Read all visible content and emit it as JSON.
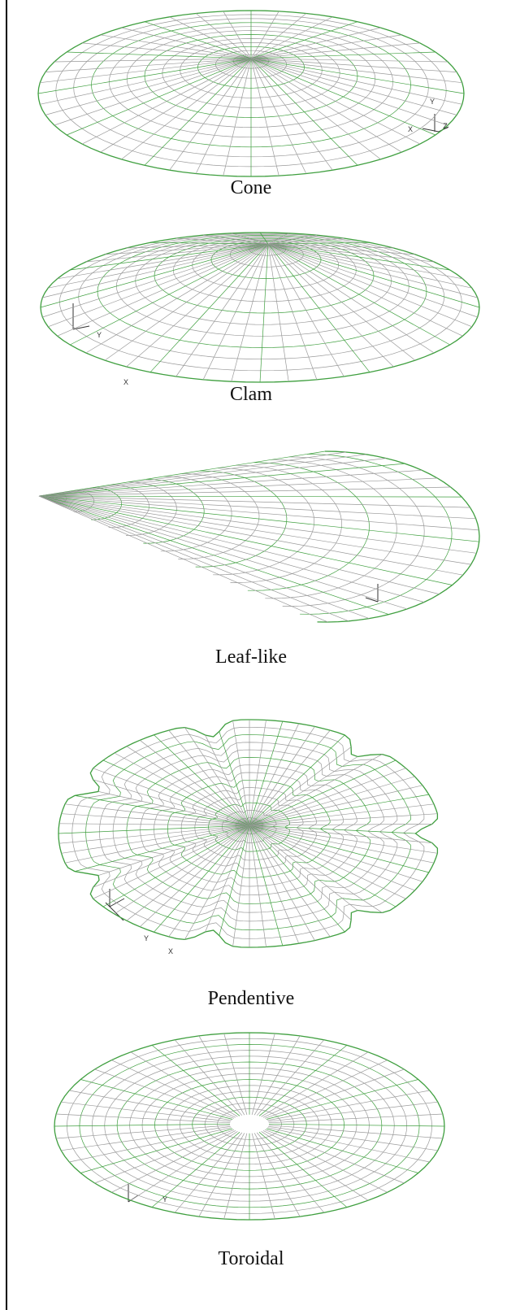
{
  "panels": [
    {
      "caption": "Cone",
      "axis_labels": [
        "Y",
        "X",
        "Z"
      ]
    },
    {
      "caption": "Clam",
      "axis_labels": [
        "Y",
        "X"
      ]
    },
    {
      "caption": "Leaf-like",
      "axis_labels": []
    },
    {
      "caption": "Pendentive",
      "axis_labels": [
        "Y",
        "X"
      ]
    },
    {
      "caption": "Toroidal",
      "axis_labels": [
        "Y"
      ]
    }
  ]
}
